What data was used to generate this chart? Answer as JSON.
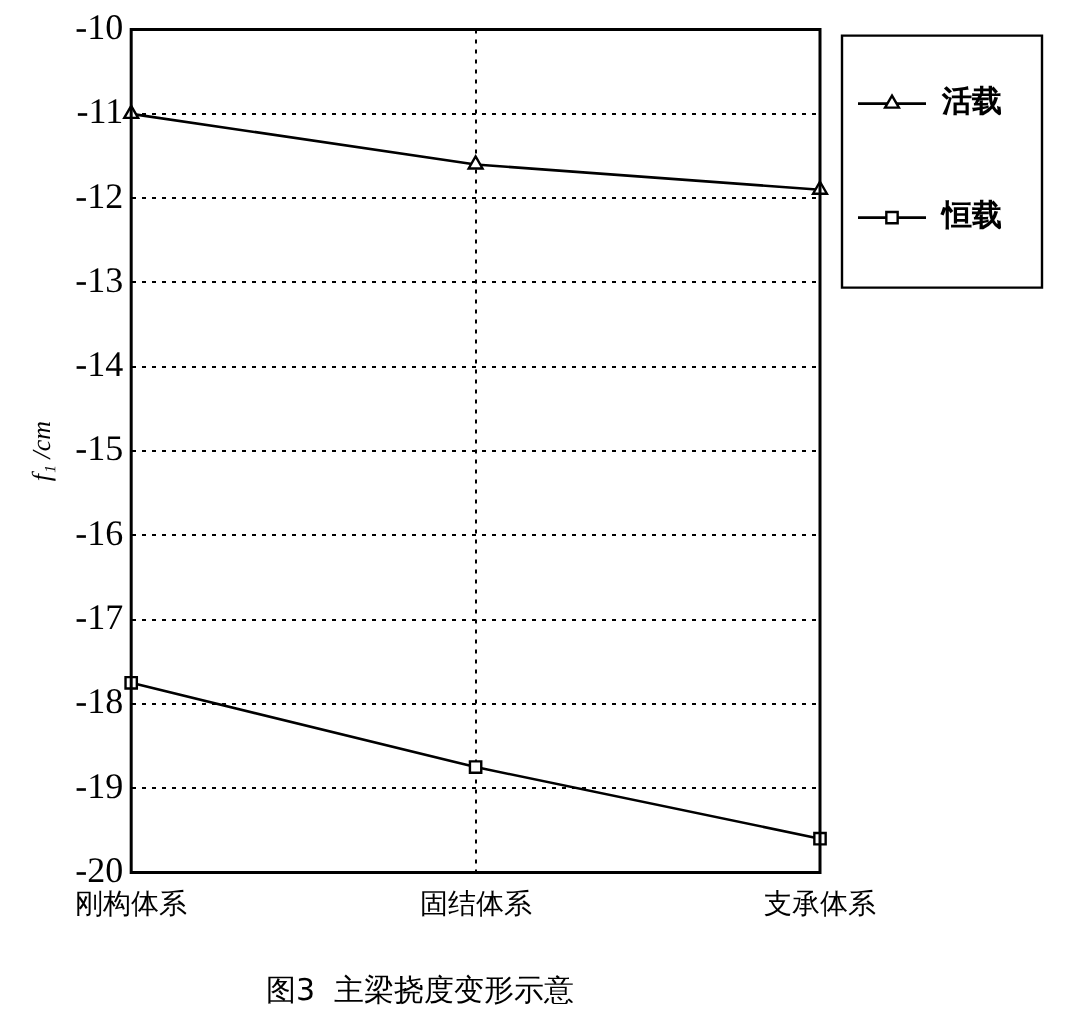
{
  "chart_data": {
    "type": "line",
    "title": "图3  主梁挠度变形示意",
    "ylabel": "f₁ /cm",
    "categories": [
      "刚构体系",
      "固结体系",
      "支承体系"
    ],
    "series": [
      {
        "name": "活载",
        "color": "#000000",
        "marker": "triangle",
        "values": [
          -11.0,
          -11.6,
          -11.9
        ]
      },
      {
        "name": "恒载",
        "color": "#000000",
        "marker": "square",
        "values": [
          -17.75,
          -18.75,
          -19.6
        ]
      }
    ],
    "ylim": [
      -20,
      -10
    ],
    "yticks": [
      -20,
      -19,
      -18,
      -17,
      -16,
      -15,
      -14,
      -13,
      -12,
      -11,
      -10
    ],
    "grid": true,
    "legend": "top right",
    "line_style": "solid"
  }
}
